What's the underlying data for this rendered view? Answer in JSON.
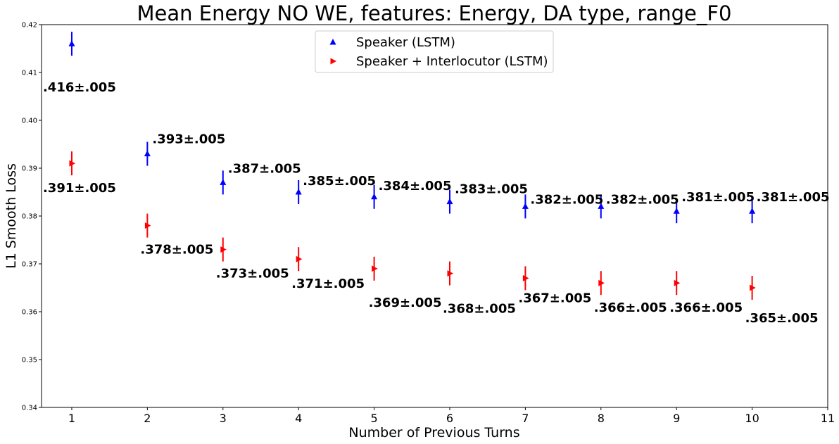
{
  "chart_data": {
    "type": "scatter",
    "title": "Mean Energy NO WE, features: Energy, DA type, range_F0",
    "xlabel": "Number of Previous Turns",
    "ylabel": "L1 Smooth Loss",
    "xlim": [
      0.6,
      11
    ],
    "ylim": [
      0.34,
      0.42
    ],
    "xticks": [
      1,
      2,
      3,
      4,
      5,
      6,
      7,
      8,
      9,
      10,
      11
    ],
    "yticks": [
      "0.34",
      "0.35",
      "0.36",
      "0.37",
      "0.38",
      "0.39",
      "0.40",
      "0.41",
      "0.42"
    ],
    "grid": false,
    "legend_position": "top-center",
    "series": [
      {
        "name": "Speaker (LSTM)",
        "color": "#0000ff",
        "marker": "triangle-up",
        "x": [
          1,
          2,
          3,
          4,
          5,
          6,
          7,
          8,
          9,
          10
        ],
        "y": [
          0.416,
          0.393,
          0.387,
          0.385,
          0.384,
          0.383,
          0.382,
          0.382,
          0.381,
          0.381
        ],
        "error": 0.0025,
        "labels": [
          ".416±.005",
          ".393±.005",
          ".387±.005",
          ".385±.005",
          ".384±.005",
          ".383±.005",
          ".382±.005",
          ".382±.005",
          ".381±.005",
          ".381±.005"
        ]
      },
      {
        "name": "Speaker + Interlocutor (LSTM)",
        "color": "#ff0000",
        "marker": "triangle-right",
        "x": [
          1,
          2,
          3,
          4,
          5,
          6,
          7,
          8,
          9,
          10
        ],
        "y": [
          0.391,
          0.378,
          0.373,
          0.371,
          0.369,
          0.368,
          0.367,
          0.366,
          0.366,
          0.365
        ],
        "error": 0.0025,
        "labels": [
          ".391±.005",
          ".378±.005",
          ".373±.005",
          ".371±.005",
          ".369±.005",
          ".368±.005",
          ".367±.005",
          ".366±.005",
          ".366±.005",
          ".365±.005"
        ]
      }
    ]
  }
}
